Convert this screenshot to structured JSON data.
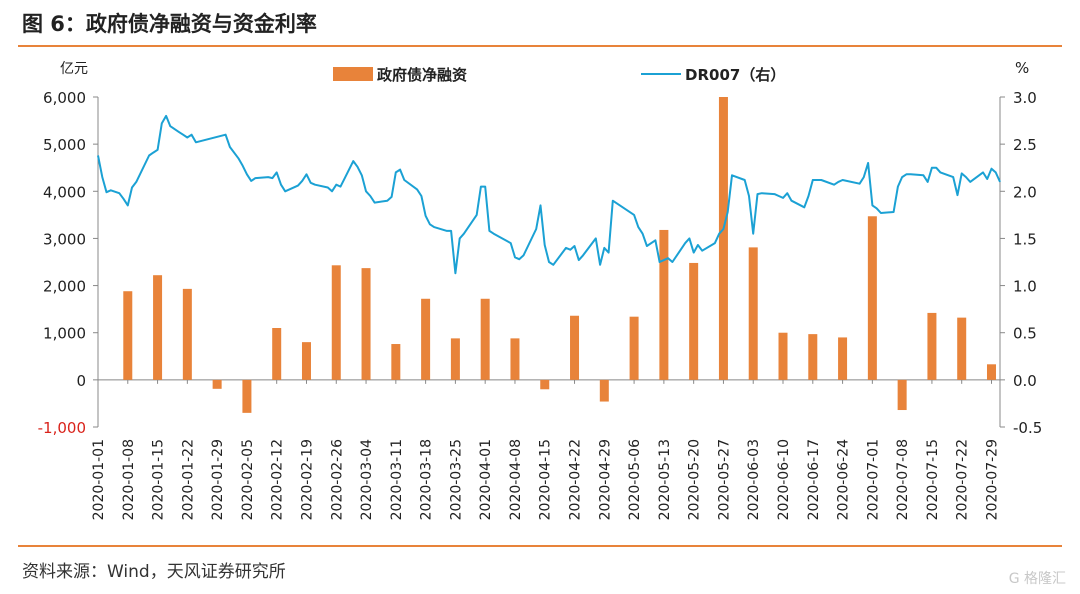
{
  "header": {
    "title": "图 6：政府债净融资与资金利率"
  },
  "footer": {
    "source": "资料来源：Wind，天风证券研究所",
    "watermark": "G 格隆汇"
  },
  "colors": {
    "bar": "#e8833a",
    "line": "#1ba1d4",
    "accent": "#e8833a"
  },
  "chart_data": {
    "type": "bar",
    "legend_position": "top-center",
    "y_left_unit": "亿元",
    "y_right_unit": "%",
    "y_left_range": [
      -1000,
      6000
    ],
    "y_right_range": [
      -0.5,
      3.0
    ],
    "y_left_ticks": [
      "-1,000",
      "0",
      "1,000",
      "2,000",
      "3,000",
      "4,000",
      "5,000",
      "6,000"
    ],
    "y_right_ticks": [
      "-0.5",
      "0.0",
      "0.5",
      "1.0",
      "1.5",
      "2.0",
      "2.5",
      "3.0"
    ],
    "x_tick_labels": [
      "2020-01-01",
      "2020-01-08",
      "2020-01-15",
      "2020-01-22",
      "2020-01-29",
      "2020-02-05",
      "2020-02-12",
      "2020-02-19",
      "2020-02-26",
      "2020-03-04",
      "2020-03-11",
      "2020-03-18",
      "2020-03-25",
      "2020-04-01",
      "2020-04-08",
      "2020-04-15",
      "2020-04-22",
      "2020-04-29",
      "2020-05-06",
      "2020-05-13",
      "2020-05-20",
      "2020-05-27",
      "2020-06-03",
      "2020-06-10",
      "2020-06-17",
      "2020-06-24",
      "2020-07-01",
      "2020-07-08",
      "2020-07-15",
      "2020-07-22",
      "2020-07-29"
    ],
    "series": [
      {
        "name": "政府债净融资",
        "kind": "bar",
        "axis": "left",
        "points": [
          [
            "2020-01-08",
            1880
          ],
          [
            "2020-01-15",
            2220
          ],
          [
            "2020-01-22",
            1930
          ],
          [
            "2020-01-29",
            -190
          ],
          [
            "2020-02-05",
            -700
          ],
          [
            "2020-02-12",
            1100
          ],
          [
            "2020-02-19",
            800
          ],
          [
            "2020-02-26",
            2430
          ],
          [
            "2020-03-04",
            2370
          ],
          [
            "2020-03-11",
            760
          ],
          [
            "2020-03-18",
            1720
          ],
          [
            "2020-03-25",
            880
          ],
          [
            "2020-04-01",
            1720
          ],
          [
            "2020-04-08",
            880
          ],
          [
            "2020-04-15",
            -200
          ],
          [
            "2020-04-22",
            1360
          ],
          [
            "2020-04-29",
            -460
          ],
          [
            "2020-05-06",
            1340
          ],
          [
            "2020-05-13",
            3180
          ],
          [
            "2020-05-20",
            2480
          ],
          [
            "2020-05-27",
            6000
          ],
          [
            "2020-06-03",
            2810
          ],
          [
            "2020-06-10",
            1000
          ],
          [
            "2020-06-17",
            970
          ],
          [
            "2020-06-24",
            900
          ],
          [
            "2020-07-01",
            3470
          ],
          [
            "2020-07-08",
            -640
          ],
          [
            "2020-07-15",
            1420
          ],
          [
            "2020-07-22",
            1320
          ],
          [
            "2020-07-29",
            330
          ]
        ]
      },
      {
        "name": "DR007（右）",
        "kind": "line",
        "axis": "right",
        "points": [
          [
            "2020-01-01",
            2.38
          ],
          [
            "2020-01-02",
            2.15
          ],
          [
            "2020-01-03",
            1.99
          ],
          [
            "2020-01-04",
            2.01
          ],
          [
            "2020-01-06",
            1.98
          ],
          [
            "2020-01-07",
            1.92
          ],
          [
            "2020-01-08",
            1.85
          ],
          [
            "2020-01-09",
            2.04
          ],
          [
            "2020-01-10",
            2.1
          ],
          [
            "2020-01-13",
            2.38
          ],
          [
            "2020-01-14",
            2.41
          ],
          [
            "2020-01-15",
            2.44
          ],
          [
            "2020-01-16",
            2.72
          ],
          [
            "2020-01-17",
            2.8
          ],
          [
            "2020-01-18",
            2.69
          ],
          [
            "2020-01-20",
            2.63
          ],
          [
            "2020-01-21",
            2.6
          ],
          [
            "2020-01-22",
            2.57
          ],
          [
            "2020-01-23",
            2.6
          ],
          [
            "2020-01-24",
            2.52
          ],
          [
            "2020-01-31",
            2.6
          ],
          [
            "2020-02-01",
            2.47
          ],
          [
            "2020-02-03",
            2.35
          ],
          [
            "2020-02-04",
            2.27
          ],
          [
            "2020-02-05",
            2.18
          ],
          [
            "2020-02-06",
            2.11
          ],
          [
            "2020-02-07",
            2.14
          ],
          [
            "2020-02-10",
            2.15
          ],
          [
            "2020-02-11",
            2.14
          ],
          [
            "2020-02-12",
            2.2
          ],
          [
            "2020-02-13",
            2.07
          ],
          [
            "2020-02-14",
            2.0
          ],
          [
            "2020-02-17",
            2.06
          ],
          [
            "2020-02-18",
            2.11
          ],
          [
            "2020-02-19",
            2.18
          ],
          [
            "2020-02-20",
            2.09
          ],
          [
            "2020-02-21",
            2.07
          ],
          [
            "2020-02-24",
            2.04
          ],
          [
            "2020-02-25",
            2.0
          ],
          [
            "2020-02-26",
            2.07
          ],
          [
            "2020-02-27",
            2.05
          ],
          [
            "2020-02-28",
            2.14
          ],
          [
            "2020-03-01",
            2.32
          ],
          [
            "2020-03-02",
            2.26
          ],
          [
            "2020-03-03",
            2.17
          ],
          [
            "2020-03-04",
            2.0
          ],
          [
            "2020-03-05",
            1.95
          ],
          [
            "2020-03-06",
            1.88
          ],
          [
            "2020-03-09",
            1.9
          ],
          [
            "2020-03-10",
            1.94
          ],
          [
            "2020-03-11",
            2.2
          ],
          [
            "2020-03-12",
            2.23
          ],
          [
            "2020-03-13",
            2.12
          ],
          [
            "2020-03-16",
            2.02
          ],
          [
            "2020-03-17",
            1.95
          ],
          [
            "2020-03-18",
            1.74
          ],
          [
            "2020-03-19",
            1.65
          ],
          [
            "2020-03-20",
            1.62
          ],
          [
            "2020-03-23",
            1.58
          ],
          [
            "2020-03-24",
            1.58
          ],
          [
            "2020-03-25",
            1.13
          ],
          [
            "2020-03-26",
            1.5
          ],
          [
            "2020-03-27",
            1.55
          ],
          [
            "2020-03-30",
            1.75
          ],
          [
            "2020-03-31",
            2.05
          ],
          [
            "2020-04-01",
            2.05
          ],
          [
            "2020-04-02",
            1.58
          ],
          [
            "2020-04-03",
            1.55
          ],
          [
            "2020-04-07",
            1.45
          ],
          [
            "2020-04-08",
            1.3
          ],
          [
            "2020-04-09",
            1.28
          ],
          [
            "2020-04-10",
            1.32
          ],
          [
            "2020-04-13",
            1.6
          ],
          [
            "2020-04-14",
            1.85
          ],
          [
            "2020-04-15",
            1.43
          ],
          [
            "2020-04-16",
            1.25
          ],
          [
            "2020-04-17",
            1.22
          ],
          [
            "2020-04-20",
            1.4
          ],
          [
            "2020-04-21",
            1.38
          ],
          [
            "2020-04-22",
            1.42
          ],
          [
            "2020-04-23",
            1.27
          ],
          [
            "2020-04-24",
            1.32
          ],
          [
            "2020-04-27",
            1.5
          ],
          [
            "2020-04-28",
            1.22
          ],
          [
            "2020-04-29",
            1.4
          ],
          [
            "2020-04-30",
            1.35
          ],
          [
            "2020-05-01",
            1.9
          ],
          [
            "2020-05-06",
            1.75
          ],
          [
            "2020-05-07",
            1.62
          ],
          [
            "2020-05-08",
            1.55
          ],
          [
            "2020-05-09",
            1.42
          ],
          [
            "2020-05-11",
            1.48
          ],
          [
            "2020-05-12",
            1.25
          ],
          [
            "2020-05-13",
            1.27
          ],
          [
            "2020-05-14",
            1.29
          ],
          [
            "2020-05-15",
            1.25
          ],
          [
            "2020-05-18",
            1.45
          ],
          [
            "2020-05-19",
            1.5
          ],
          [
            "2020-05-20",
            1.35
          ],
          [
            "2020-05-21",
            1.43
          ],
          [
            "2020-05-22",
            1.37
          ],
          [
            "2020-05-25",
            1.45
          ],
          [
            "2020-05-26",
            1.55
          ],
          [
            "2020-05-27",
            1.6
          ],
          [
            "2020-05-28",
            1.78
          ],
          [
            "2020-05-29",
            2.17
          ],
          [
            "2020-06-01",
            2.12
          ],
          [
            "2020-06-02",
            1.95
          ],
          [
            "2020-06-03",
            1.55
          ],
          [
            "2020-06-04",
            1.97
          ],
          [
            "2020-06-05",
            1.98
          ],
          [
            "2020-06-08",
            1.97
          ],
          [
            "2020-06-09",
            1.95
          ],
          [
            "2020-06-10",
            1.93
          ],
          [
            "2020-06-11",
            1.98
          ],
          [
            "2020-06-12",
            1.9
          ],
          [
            "2020-06-15",
            1.83
          ],
          [
            "2020-06-16",
            1.95
          ],
          [
            "2020-06-17",
            2.12
          ],
          [
            "2020-06-18",
            2.12
          ],
          [
            "2020-06-19",
            2.12
          ],
          [
            "2020-06-22",
            2.07
          ],
          [
            "2020-06-23",
            2.1
          ],
          [
            "2020-06-24",
            2.12
          ],
          [
            "2020-06-28",
            2.08
          ],
          [
            "2020-06-29",
            2.15
          ],
          [
            "2020-06-30",
            2.3
          ],
          [
            "2020-07-01",
            1.85
          ],
          [
            "2020-07-02",
            1.82
          ],
          [
            "2020-07-03",
            1.77
          ],
          [
            "2020-07-06",
            1.78
          ],
          [
            "2020-07-07",
            2.05
          ],
          [
            "2020-07-08",
            2.15
          ],
          [
            "2020-07-09",
            2.18
          ],
          [
            "2020-07-10",
            2.18
          ],
          [
            "2020-07-13",
            2.17
          ],
          [
            "2020-07-14",
            2.1
          ],
          [
            "2020-07-15",
            2.25
          ],
          [
            "2020-07-16",
            2.25
          ],
          [
            "2020-07-17",
            2.2
          ],
          [
            "2020-07-20",
            2.15
          ],
          [
            "2020-07-21",
            1.96
          ],
          [
            "2020-07-22",
            2.19
          ],
          [
            "2020-07-23",
            2.15
          ],
          [
            "2020-07-24",
            2.1
          ],
          [
            "2020-07-27",
            2.2
          ],
          [
            "2020-07-28",
            2.13
          ],
          [
            "2020-07-29",
            2.24
          ],
          [
            "2020-07-30",
            2.2
          ],
          [
            "2020-07-31",
            2.1
          ]
        ]
      }
    ]
  }
}
